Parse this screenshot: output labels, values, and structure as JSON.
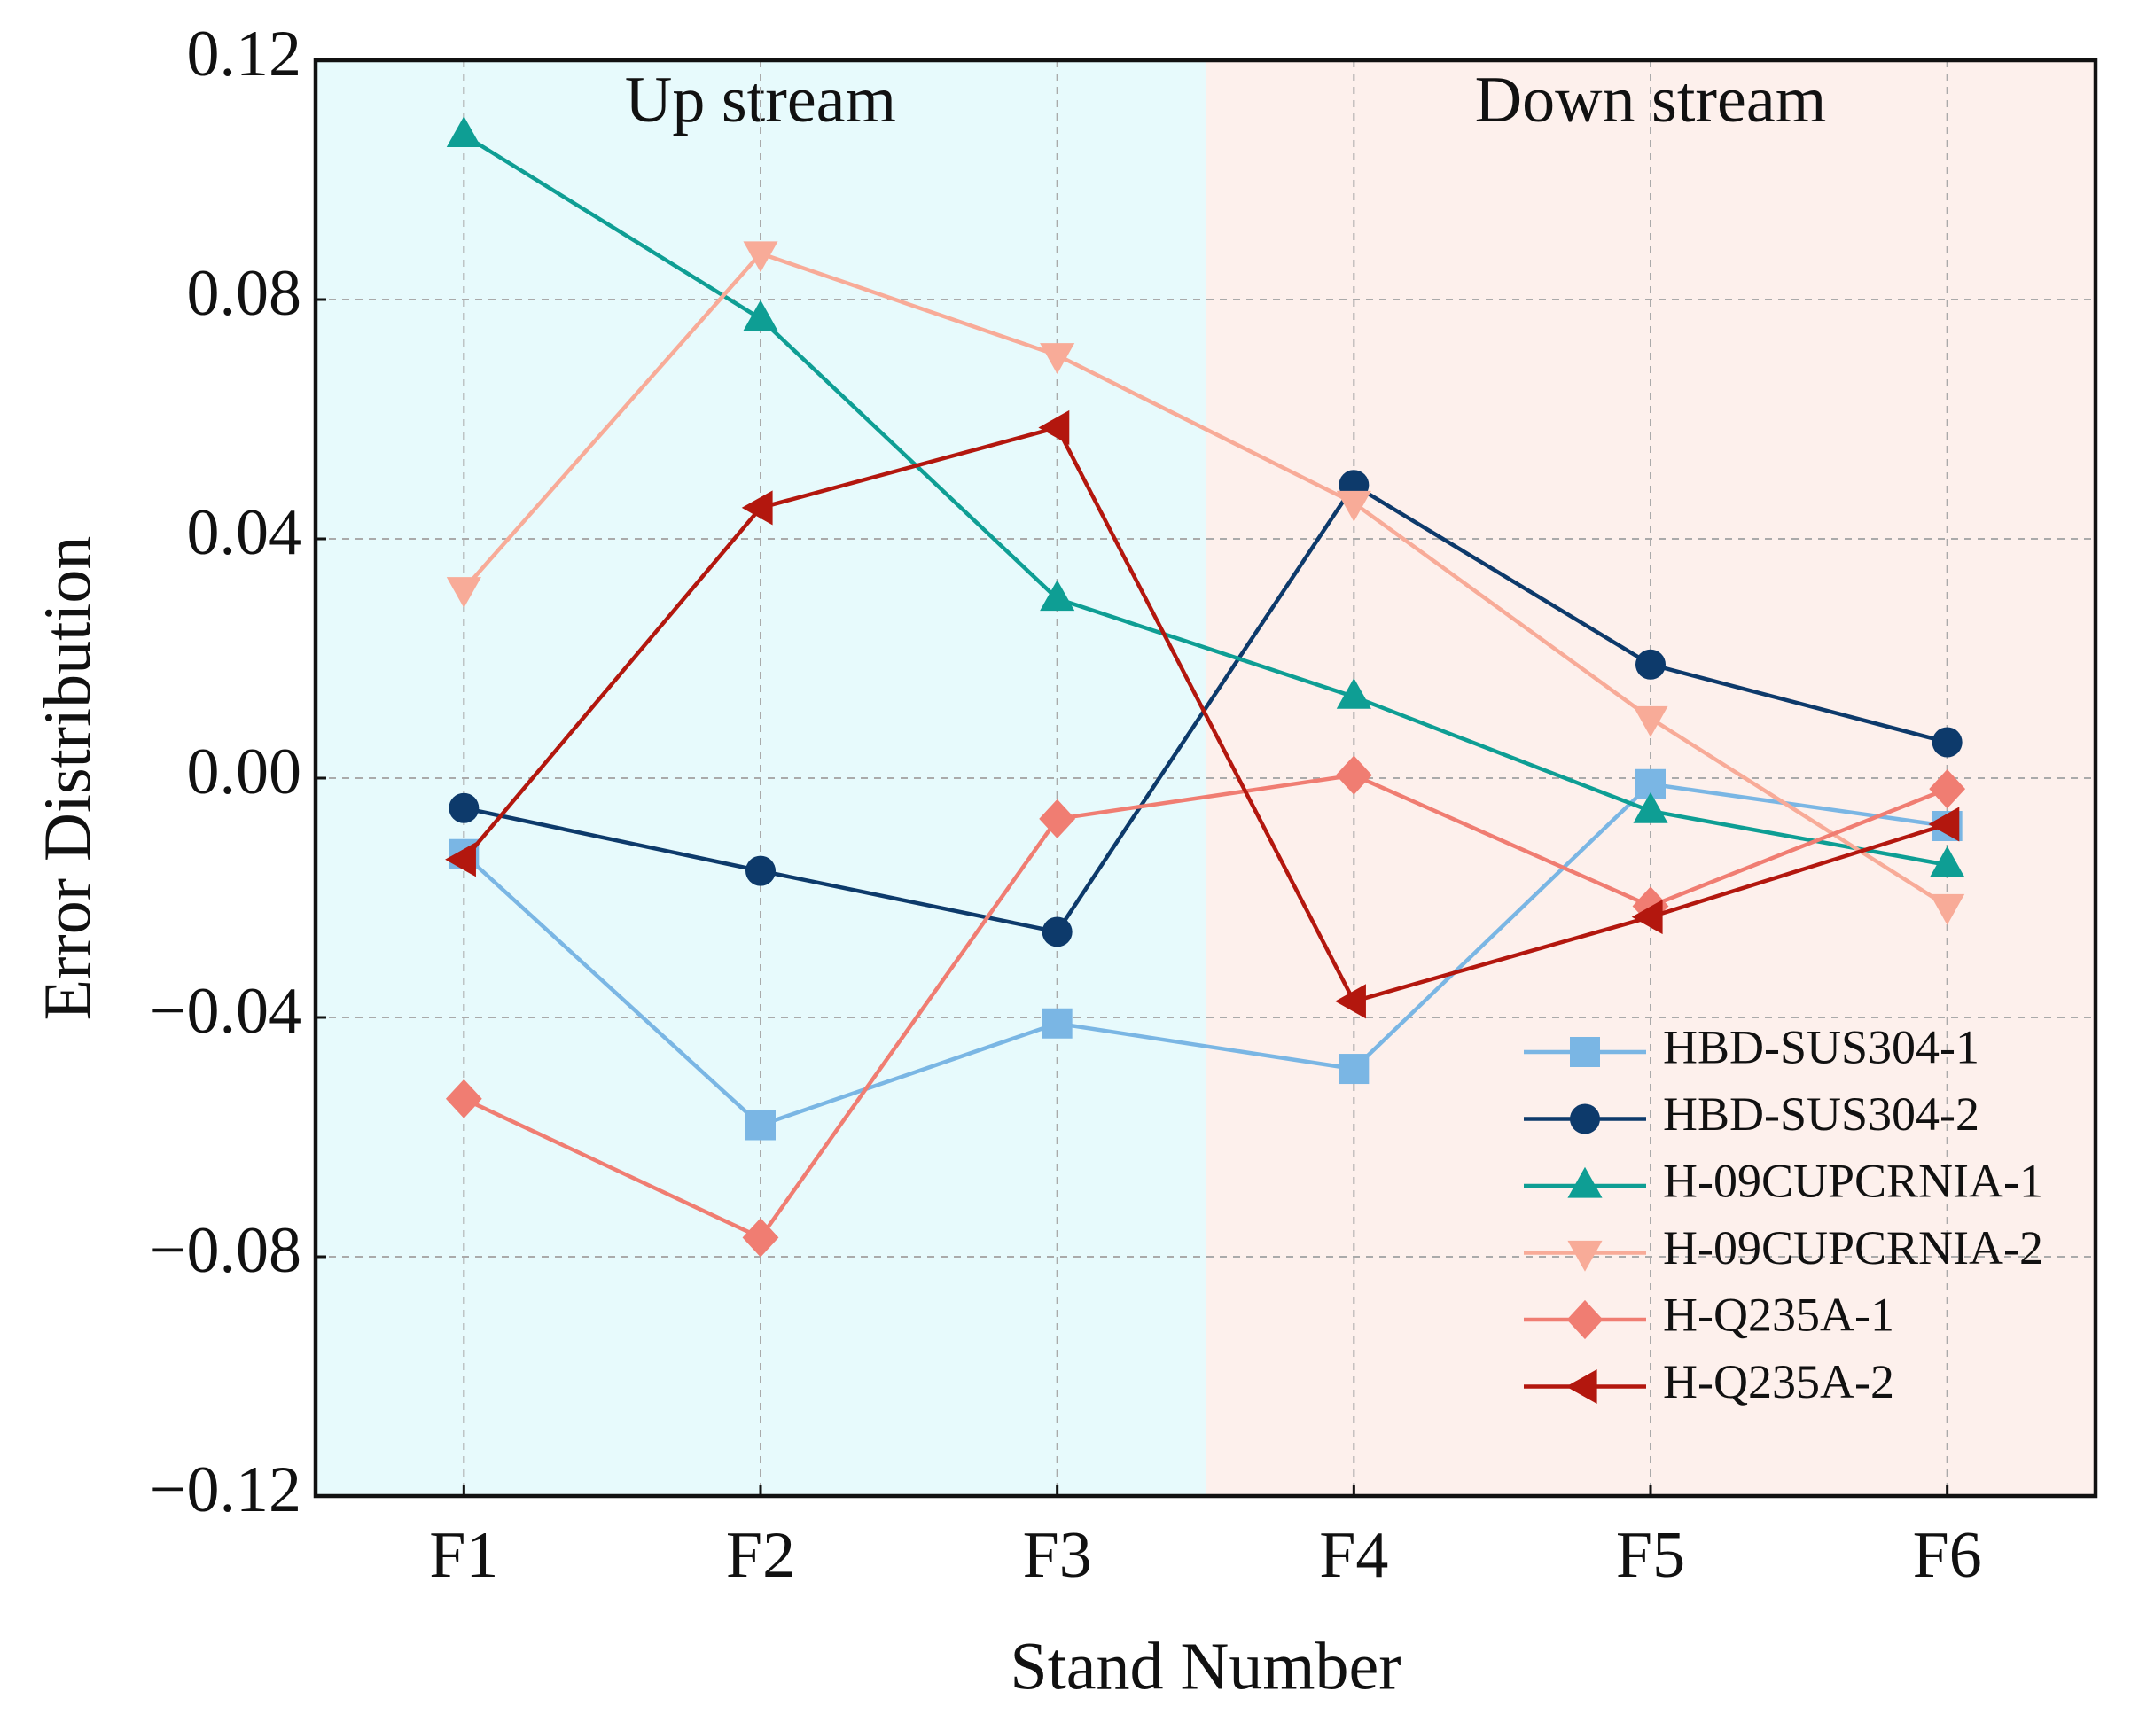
{
  "chart_data": {
    "type": "line",
    "xlabel": "Stand Number",
    "ylabel": "Error Distribution",
    "categories": [
      "F1",
      "F2",
      "F3",
      "F4",
      "F5",
      "F6"
    ],
    "ylim": [
      -0.12,
      0.12
    ],
    "yticks": [
      {
        "value": -0.12,
        "label": "−0.12"
      },
      {
        "value": -0.08,
        "label": "−0.08"
      },
      {
        "value": -0.04,
        "label": "−0.04"
      },
      {
        "value": 0,
        "label": "0.00"
      },
      0.04,
      0.08,
      0.12
    ],
    "grid": true,
    "legend": "lower right",
    "regions": [
      {
        "label": "Up stream",
        "categories": [
          "F1",
          "F2",
          "F3"
        ],
        "color": "#e7fafc"
      },
      {
        "label": "Down stream",
        "categories": [
          "F4",
          "F5",
          "F6"
        ],
        "color": "#fdf0ec"
      }
    ],
    "series": [
      {
        "name": "HBD-SUS304-1",
        "color": "#7ab6e4",
        "marker": "square",
        "values": [
          -0.0127,
          -0.058,
          -0.041,
          -0.0486,
          -0.001,
          -0.008
        ]
      },
      {
        "name": "HBD-SUS304-2",
        "color": "#0d3a6b",
        "marker": "circle",
        "values": [
          -0.005,
          -0.0155,
          -0.0257,
          0.049,
          0.019,
          0.006
        ]
      },
      {
        "name": "H-09CUPCRNIA-1",
        "color": "#0e9e94",
        "marker": "triangle-up",
        "values": [
          0.1075,
          0.0768,
          0.03,
          0.0136,
          -0.0055,
          -0.0145
        ]
      },
      {
        "name": "H-09CUPCRNIA-2",
        "color": "#f8ab98",
        "marker": "triangle-down",
        "values": [
          0.0316,
          0.0877,
          0.0707,
          0.046,
          0.01,
          -0.0214
        ]
      },
      {
        "name": "H-Q235A-1",
        "color": "#f07d72",
        "marker": "diamond",
        "values": [
          -0.0536,
          -0.0768,
          -0.0068,
          0.0005,
          -0.0214,
          -0.0018
        ]
      },
      {
        "name": "H-Q235A-2",
        "color": "#b3170e",
        "marker": "triangle-left",
        "values": [
          -0.0136,
          0.0452,
          0.0586,
          -0.0373,
          -0.0232,
          -0.0077
        ]
      }
    ]
  }
}
